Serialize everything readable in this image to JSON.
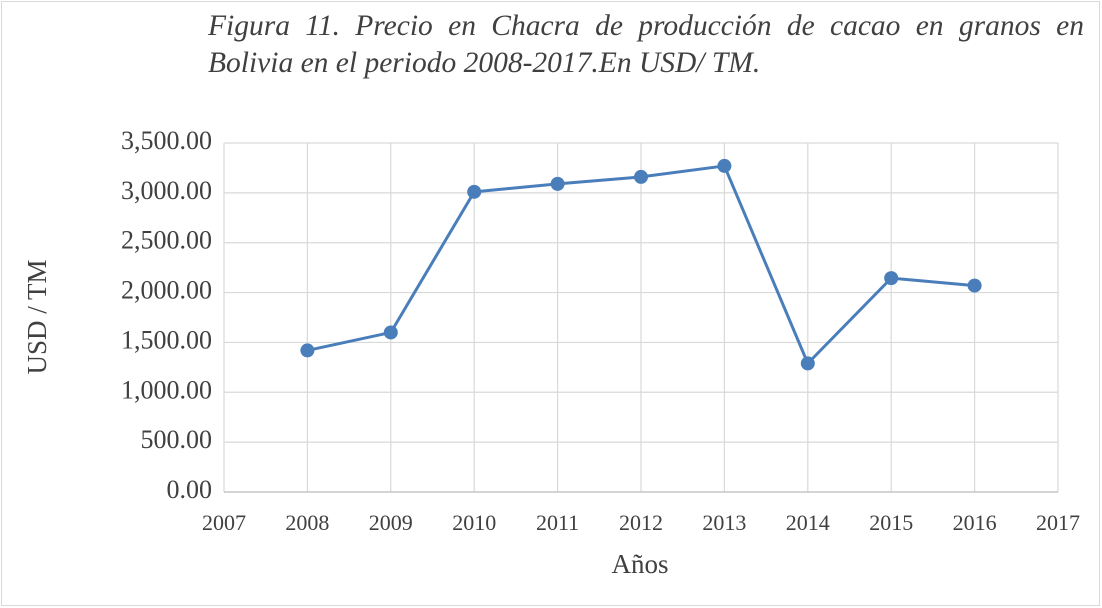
{
  "chart_data": {
    "type": "line",
    "title": "Figura 11. Precio en Chacra de producción de cacao en granos en Bolivia en el periodo 2008-2017.En USD/ TM.",
    "x_label": "Años",
    "y_label": "USD / TM",
    "x": [
      2008,
      2009,
      2010,
      2011,
      2012,
      2013,
      2014,
      2015,
      2016
    ],
    "series": [
      {
        "name": "USD / TM",
        "color": "#4a7ebb",
        "values": [
          1420,
          1600,
          3010,
          3090,
          3160,
          3270,
          1290,
          2145,
          2070
        ]
      }
    ],
    "xlim": [
      2007,
      2017
    ],
    "xticks": [
      2007,
      2008,
      2009,
      2010,
      2011,
      2012,
      2013,
      2014,
      2015,
      2016,
      2017
    ],
    "ylim": [
      0,
      3500
    ],
    "yticks": [
      {
        "value": 0,
        "label": "0.00"
      },
      {
        "value": 500,
        "label": "500.00"
      },
      {
        "value": 1000,
        "label": "1,000.00"
      },
      {
        "value": 1500,
        "label": "1,500.00"
      },
      {
        "value": 2000,
        "label": "2,000.00"
      },
      {
        "value": 2500,
        "label": "2,500.00"
      },
      {
        "value": 3000,
        "label": "3,000.00"
      },
      {
        "value": 3500,
        "label": "3,500.00"
      }
    ],
    "grid": true
  }
}
